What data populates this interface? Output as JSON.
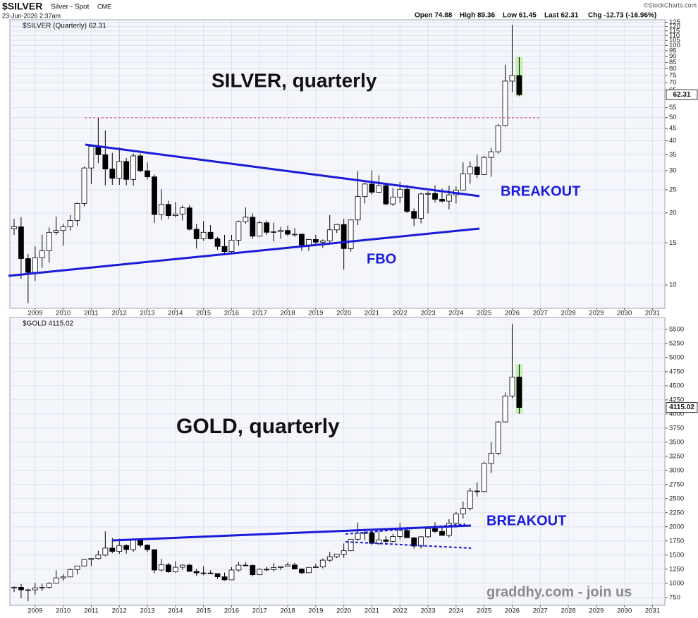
{
  "header": {
    "symbol": "$SILVER",
    "name": "Silver - Spot",
    "exchange": "CME",
    "date": "23-Jun-2026 2:37am",
    "source": "©StockCharts.com",
    "open": "Open 74.88",
    "high": "High 89.36",
    "low": "Low 61.45",
    "last": "Last 62.31",
    "change": "Chg -12.73 (-16.96%)"
  },
  "watermark": "graddhy.com - join us",
  "chart_data": [
    {
      "type": "candlestick",
      "label": "$SILVER (Quarterly) 62.31",
      "title": "SILVER, quarterly",
      "annotations": [
        "BREAKOUT",
        "FBO"
      ],
      "last_value_label": "62.31",
      "log": true,
      "grid": true,
      "xlim": [
        2008.1,
        2031.44
      ],
      "xticks": [
        2009,
        2010,
        2011,
        2012,
        2013,
        2014,
        2015,
        2016,
        2017,
        2018,
        2019,
        2020,
        2021,
        2022,
        2023,
        2024,
        2025,
        2026,
        2027,
        2028,
        2029,
        2030,
        2031
      ],
      "ylim": [
        8,
        128
      ],
      "yticks": [
        10,
        15,
        20,
        25,
        30,
        35,
        40,
        45,
        50,
        55,
        65,
        70,
        75,
        80,
        85,
        90,
        95,
        100,
        105,
        110,
        115,
        120,
        125
      ],
      "x": [
        2008.25,
        2008.5,
        2008.75,
        2009,
        2009.25,
        2009.5,
        2009.75,
        2010,
        2010.25,
        2010.5,
        2010.75,
        2011,
        2011.25,
        2011.5,
        2011.75,
        2012,
        2012.25,
        2012.5,
        2012.75,
        2013,
        2013.25,
        2013.5,
        2013.75,
        2014,
        2014.25,
        2014.5,
        2014.75,
        2015,
        2015.25,
        2015.5,
        2015.75,
        2016,
        2016.25,
        2016.5,
        2016.75,
        2017,
        2017.25,
        2017.5,
        2017.75,
        2018,
        2018.25,
        2018.5,
        2018.75,
        2019,
        2019.25,
        2019.5,
        2019.75,
        2020,
        2020.25,
        2020.5,
        2020.75,
        2021,
        2021.25,
        2021.5,
        2021.75,
        2022,
        2022.25,
        2022.5,
        2022.75,
        2023,
        2023.25,
        2023.5,
        2023.75,
        2024,
        2024.25,
        2024.5,
        2024.75,
        2025,
        2025.25,
        2025.5,
        2025.75,
        2026,
        2026.25
      ],
      "open": [
        17.2,
        17.5,
        12.9,
        11.3,
        13.0,
        13.9,
        16.6,
        16.9,
        17.5,
        18.6,
        21.9,
        30.8,
        37.9,
        35.0,
        30.5,
        27.9,
        32.8,
        27.6,
        34.6,
        30.0,
        28.3,
        19.7,
        21.7,
        19.5,
        19.8,
        21.0,
        17.1,
        15.6,
        16.6,
        15.6,
        14.5,
        13.8,
        15.4,
        18.4,
        19.2,
        16.0,
        18.2,
        16.6,
        16.7,
        16.9,
        16.3,
        16.3,
        14.7,
        15.5,
        15.1,
        15.3,
        17.0,
        17.9,
        14.2,
        18.7,
        23.4,
        26.4,
        24.4,
        26.0,
        21.8,
        23.3,
        25.1,
        20.3,
        19.0,
        24.0,
        24.1,
        22.8,
        22.4,
        23.8,
        24.9,
        29.1,
        31.1,
        28.9,
        34.1,
        36.0,
        46.3,
        71.0,
        74.88
      ],
      "high": [
        18.9,
        19.2,
        13.5,
        14.5,
        16.2,
        17.4,
        19.3,
        18.0,
        19.6,
        22.1,
        31.2,
        38.2,
        49.8,
        44.2,
        35.6,
        37.5,
        33.9,
        35.4,
        35.4,
        32.5,
        28.9,
        25.1,
        22.5,
        22.2,
        21.5,
        21.6,
        18.0,
        18.5,
        17.8,
        15.9,
        16.2,
        16.2,
        18.6,
        21.1,
        19.9,
        18.5,
        18.6,
        18.2,
        17.5,
        17.7,
        17.3,
        16.4,
        15.6,
        16.2,
        15.5,
        19.6,
        18.0,
        18.9,
        18.8,
        29.9,
        26.8,
        30.1,
        28.7,
        26.7,
        25.4,
        26.9,
        26.2,
        20.9,
        24.3,
        24.6,
        26.1,
        25.3,
        26.0,
        25.8,
        32.5,
        32.8,
        35.0,
        34.6,
        37.3,
        47.0,
        83.0,
        121.6,
        89.36
      ],
      "low": [
        16.2,
        10.6,
        8.4,
        10.4,
        11.8,
        12.4,
        16.2,
        14.6,
        16.9,
        17.6,
        21.3,
        26.4,
        32.3,
        26.1,
        26.2,
        26.2,
        26.1,
        26.0,
        29.6,
        27.6,
        18.2,
        18.7,
        18.9,
        19.2,
        18.6,
        16.9,
        14.2,
        15.3,
        15.5,
        14.0,
        13.6,
        13.6,
        14.6,
        18.0,
        15.6,
        15.9,
        16.2,
        15.2,
        15.6,
        16.0,
        15.9,
        13.9,
        13.9,
        14.6,
        14.3,
        15.0,
        16.5,
        11.6,
        13.8,
        17.8,
        21.9,
        23.8,
        24.2,
        21.5,
        21.4,
        22.0,
        20.0,
        17.6,
        18.1,
        19.9,
        22.1,
        22.1,
        20.7,
        21.9,
        24.8,
        26.5,
        28.0,
        28.8,
        28.3,
        35.4,
        45.9,
        63.9,
        61.45
      ],
      "close": [
        17.5,
        12.9,
        11.3,
        13.0,
        13.9,
        16.6,
        16.9,
        17.5,
        18.6,
        21.9,
        30.8,
        37.9,
        35.0,
        30.5,
        27.9,
        32.8,
        27.6,
        34.6,
        30.0,
        28.3,
        19.7,
        21.7,
        19.5,
        19.8,
        21.0,
        17.1,
        15.6,
        16.6,
        15.6,
        14.5,
        13.8,
        15.4,
        18.4,
        19.2,
        16.0,
        18.2,
        16.6,
        16.7,
        16.9,
        16.3,
        16.3,
        14.7,
        15.5,
        15.1,
        15.3,
        17.0,
        17.9,
        14.2,
        18.7,
        23.4,
        26.4,
        24.4,
        26.0,
        21.8,
        23.3,
        25.1,
        20.3,
        19.0,
        24.0,
        24.1,
        22.8,
        22.4,
        23.8,
        24.9,
        29.1,
        31.1,
        28.9,
        34.1,
        36.0,
        46.3,
        71.0,
        74.88,
        62.31
      ]
    },
    {
      "type": "candlestick",
      "label": "$GOLD 4115.02",
      "title": "GOLD, quarterly",
      "annotations": [
        "BREAKOUT"
      ],
      "last_value_label": "4115.02",
      "log": false,
      "grid": true,
      "xlim": [
        2008.1,
        2031.44
      ],
      "xticks": [
        2009,
        2010,
        2011,
        2012,
        2013,
        2014,
        2015,
        2016,
        2017,
        2018,
        2019,
        2020,
        2021,
        2022,
        2023,
        2024,
        2025,
        2026,
        2027,
        2028,
        2029,
        2030,
        2031
      ],
      "ylim": [
        610,
        5710
      ],
      "yticks": [
        750,
        1000,
        1250,
        1500,
        1750,
        2000,
        2250,
        2500,
        2750,
        3000,
        3250,
        3500,
        3750,
        4000,
        4250,
        4500,
        4750,
        5000,
        5250,
        5500
      ],
      "x": [
        2008.25,
        2008.5,
        2008.75,
        2009,
        2009.25,
        2009.5,
        2009.75,
        2010,
        2010.25,
        2010.5,
        2010.75,
        2011,
        2011.25,
        2011.5,
        2011.75,
        2012,
        2012.25,
        2012.5,
        2012.75,
        2013,
        2013.25,
        2013.5,
        2013.75,
        2014,
        2014.25,
        2014.5,
        2014.75,
        2015,
        2015.25,
        2015.5,
        2015.75,
        2016,
        2016.25,
        2016.5,
        2016.75,
        2017,
        2017.25,
        2017.5,
        2017.75,
        2018,
        2018.25,
        2018.5,
        2018.75,
        2019,
        2019.25,
        2019.5,
        2019.75,
        2020,
        2020.25,
        2020.5,
        2020.75,
        2021,
        2021.25,
        2021.5,
        2021.75,
        2022,
        2022.25,
        2022.5,
        2022.75,
        2023,
        2023.25,
        2023.5,
        2023.75,
        2024,
        2024.25,
        2024.5,
        2024.75,
        2025,
        2025.25,
        2025.5,
        2025.75,
        2026,
        2026.25
      ],
      "open": [
        917,
        930,
        884,
        884,
        919,
        927,
        1000,
        1095,
        1113,
        1244,
        1307,
        1421,
        1439,
        1500,
        1624,
        1565,
        1669,
        1599,
        1776,
        1675,
        1596,
        1235,
        1327,
        1202,
        1284,
        1322,
        1211,
        1184,
        1183,
        1172,
        1115,
        1061,
        1235,
        1322,
        1316,
        1152,
        1249,
        1242,
        1280,
        1303,
        1325,
        1253,
        1187,
        1282,
        1292,
        1409,
        1472,
        1517,
        1577,
        1781,
        1886,
        1895,
        1708,
        1770,
        1743,
        1829,
        1937,
        1807,
        1660,
        1824,
        1969,
        1919,
        1849,
        2063,
        2230,
        2327,
        2635,
        2625,
        3124,
        3303,
        3859,
        4319,
        4655
      ],
      "high": [
        947,
        987,
        906,
        1007,
        991,
        1019,
        1227,
        1162,
        1265,
        1307,
        1431,
        1447,
        1577,
        1921,
        1803,
        1790,
        1692,
        1795,
        1796,
        1696,
        1605,
        1434,
        1362,
        1392,
        1332,
        1345,
        1255,
        1307,
        1232,
        1178,
        1191,
        1287,
        1375,
        1375,
        1337,
        1264,
        1296,
        1357,
        1307,
        1366,
        1365,
        1265,
        1287,
        1346,
        1439,
        1557,
        1524,
        1704,
        1788,
        2075,
        1966,
        1959,
        1916,
        1834,
        1877,
        2070,
        1998,
        1814,
        1833,
        2009,
        2081,
        1987,
        2135,
        2265,
        2450,
        2685,
        2790,
        3149,
        3500,
        3872,
        4381,
        5595,
        4880
      ],
      "low": [
        846,
        735,
        681,
        801,
        864,
        903,
        998,
        1044,
        1105,
        1156,
        1297,
        1308,
        1420,
        1478,
        1532,
        1522,
        1527,
        1555,
        1636,
        1555,
        1180,
        1208,
        1187,
        1182,
        1240,
        1206,
        1132,
        1142,
        1162,
        1077,
        1046,
        1061,
        1208,
        1306,
        1123,
        1146,
        1214,
        1205,
        1236,
        1303,
        1248,
        1160,
        1182,
        1276,
        1266,
        1382,
        1445,
        1451,
        1567,
        1757,
        1764,
        1677,
        1676,
        1690,
        1721,
        1780,
        1805,
        1615,
        1617,
        1804,
        1893,
        1846,
        1810,
        1984,
        2146,
        2293,
        2537,
        2615,
        2957,
        3268,
        3850,
        4280,
        4000
      ],
      "close": [
        930,
        884,
        884,
        919,
        927,
        1000,
        1095,
        1113,
        1244,
        1307,
        1421,
        1439,
        1500,
        1624,
        1565,
        1669,
        1599,
        1776,
        1675,
        1596,
        1235,
        1327,
        1202,
        1284,
        1322,
        1211,
        1184,
        1183,
        1172,
        1115,
        1061,
        1235,
        1322,
        1316,
        1152,
        1249,
        1242,
        1280,
        1303,
        1325,
        1253,
        1187,
        1282,
        1292,
        1409,
        1472,
        1517,
        1577,
        1781,
        1886,
        1895,
        1708,
        1770,
        1743,
        1829,
        1937,
        1807,
        1660,
        1824,
        1969,
        1919,
        1849,
        2063,
        2230,
        2327,
        2635,
        2625,
        3124,
        3303,
        3859,
        4319,
        4655,
        4115.02
      ]
    }
  ]
}
